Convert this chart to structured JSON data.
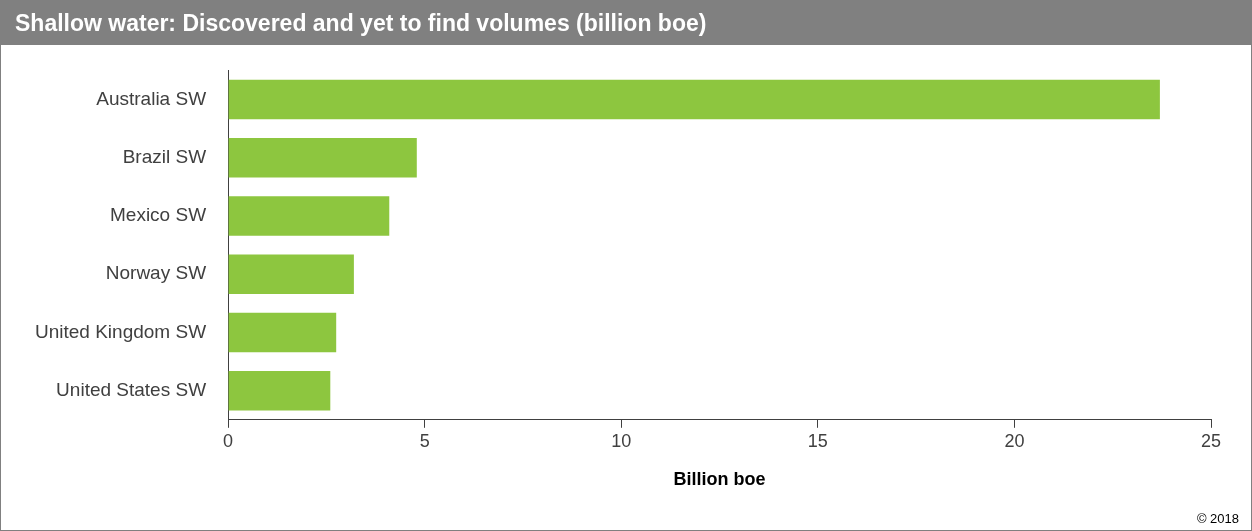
{
  "chart_data": {
    "type": "bar",
    "orientation": "horizontal",
    "title": "Shallow water: Discovered and yet to find volumes (billion boe)",
    "xlabel": "Billion boe",
    "categories": [
      "Australia SW",
      "Brazil SW",
      "Mexico SW",
      "Norway SW",
      "United Kingdom SW",
      "United States SW"
    ],
    "values": [
      23.7,
      4.8,
      4.1,
      3.2,
      2.75,
      2.6
    ],
    "color": "#8dc63f",
    "xlim": [
      0,
      25
    ],
    "xticks": [
      0,
      5,
      10,
      15,
      20,
      25
    ],
    "grid": false,
    "legend": false,
    "annotations": [
      "© 2018"
    ]
  }
}
